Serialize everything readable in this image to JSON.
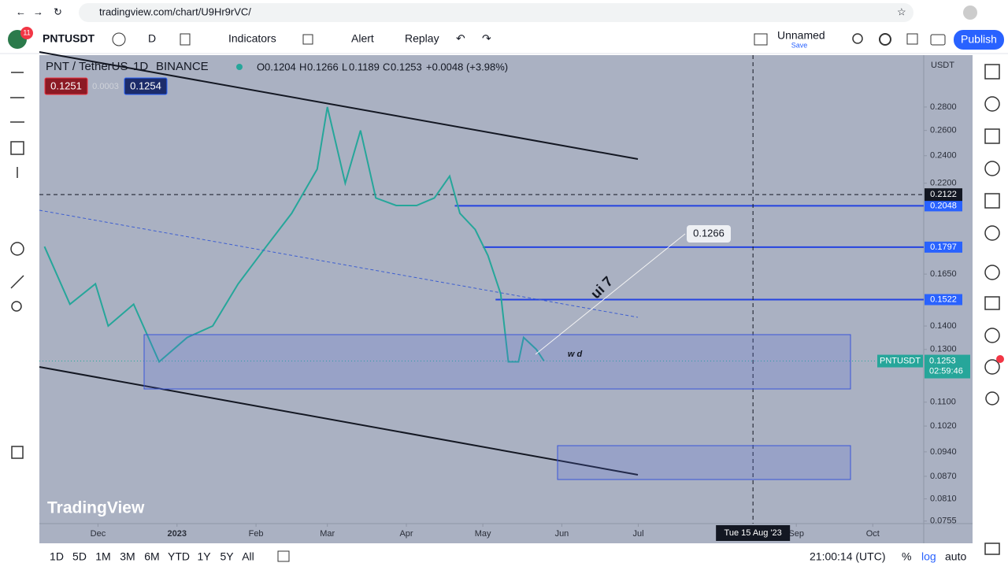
{
  "browser": {
    "url": "tradingview.com/chart/U9Hr9rVC/"
  },
  "toolbar": {
    "badge": "11",
    "symbol": "PNTUSDT",
    "interval": "D",
    "indicators": "Indicators",
    "alert": "Alert",
    "replay": "Replay",
    "layout_name": "Unnamed",
    "save": "Save",
    "publish": "Publish"
  },
  "legend": {
    "symbol_name": "PNT / TetherUS",
    "interval": "1D",
    "exchange": "BINANCE",
    "open_label": "O",
    "open": 0.1204,
    "high_label": "H",
    "high": 0.1266,
    "low_label": "L",
    "low": 0.1189,
    "close_label": "C",
    "close": 0.1253,
    "change": "+0.0048 (+3.98%)",
    "bid": 0.1251,
    "spread": 0.0003,
    "ask": 0.1254
  },
  "chart_data": {
    "type": "line",
    "x": [
      "2022-11-10",
      "2022-11-20",
      "2022-11-30",
      "2022-12-05",
      "2022-12-15",
      "2022-12-25",
      "2023-01-05",
      "2023-01-15",
      "2023-01-25",
      "2023-02-05",
      "2023-02-15",
      "2023-02-25",
      "2023-03-01",
      "2023-03-08",
      "2023-03-14",
      "2023-03-20",
      "2023-03-28",
      "2023-04-05",
      "2023-04-12",
      "2023-04-18",
      "2023-04-22",
      "2023-04-28",
      "2023-05-03",
      "2023-05-08",
      "2023-05-11",
      "2023-05-15",
      "2023-05-17",
      "2023-05-22",
      "2023-05-25"
    ],
    "values": [
      0.18,
      0.15,
      0.16,
      0.14,
      0.15,
      0.125,
      0.135,
      0.14,
      0.16,
      0.18,
      0.2,
      0.23,
      0.28,
      0.22,
      0.26,
      0.21,
      0.205,
      0.205,
      0.21,
      0.225,
      0.2,
      0.19,
      0.175,
      0.155,
      0.125,
      0.125,
      0.135,
      0.13,
      0.1253
    ],
    "color": "#26a69a",
    "log_scale": true,
    "ylim": [
      0.0749,
      0.33
    ],
    "yticks": [
      {
        "value": 0.28,
        "label": "0.2800"
      },
      {
        "value": 0.26,
        "label": "0.2600"
      },
      {
        "value": 0.24,
        "label": "0.2400"
      },
      {
        "value": 0.22,
        "label": "0.2200"
      },
      {
        "value": 0.165,
        "label": "0.1650"
      },
      {
        "value": 0.14,
        "label": "0.1400"
      },
      {
        "value": 0.13,
        "label": "0.1300"
      },
      {
        "value": 0.11,
        "label": "0.1100"
      },
      {
        "value": 0.102,
        "label": "0.1020"
      },
      {
        "value": 0.094,
        "label": "0.0940"
      },
      {
        "value": 0.087,
        "label": "0.0870"
      },
      {
        "value": 0.081,
        "label": "0.0810"
      },
      {
        "value": 0.0755,
        "label": "0.0755"
      }
    ],
    "xlim": [
      "2022-11-08",
      "2023-10-21"
    ],
    "xticks": [
      {
        "value": "2022-12-01",
        "label": "Dec"
      },
      {
        "value": "2023-01-01",
        "label": "2023"
      },
      {
        "value": "2023-02-01",
        "label": "Feb"
      },
      {
        "value": "2023-03-01",
        "label": "Mar"
      },
      {
        "value": "2023-04-01",
        "label": "Apr"
      },
      {
        "value": "2023-05-01",
        "label": "May"
      },
      {
        "value": "2023-06-01",
        "label": "Jun"
      },
      {
        "value": "2023-07-01",
        "label": "Jul"
      },
      {
        "value": "2023-09-01",
        "label": "Sep"
      },
      {
        "value": "2023-10-01",
        "label": "Oct"
      }
    ],
    "currency": "USDT",
    "levels": [
      {
        "value": 0.2048,
        "start": "2023-04-20"
      },
      {
        "value": 0.1797,
        "start": "2023-05-01"
      },
      {
        "value": 0.1522,
        "start": "2023-05-06"
      }
    ],
    "last_price": {
      "symbol": "PNTUSDT",
      "value": 0.1253,
      "countdown": "02:59:46"
    },
    "crosshair": {
      "value": 0.2122,
      "date": "2023-08-15",
      "label": "Tue 15 Aug '23"
    },
    "price_note": 0.1266,
    "annotations": [
      "ui 7",
      "w d"
    ]
  },
  "watermark": "TradingView",
  "bottom_bar": {
    "ranges": [
      "1D",
      "5D",
      "1M",
      "3M",
      "6M",
      "YTD",
      "1Y",
      "5Y",
      "All"
    ],
    "clock": "21:00:14 (UTC)",
    "percent": "%",
    "log": "log",
    "auto": "auto"
  }
}
